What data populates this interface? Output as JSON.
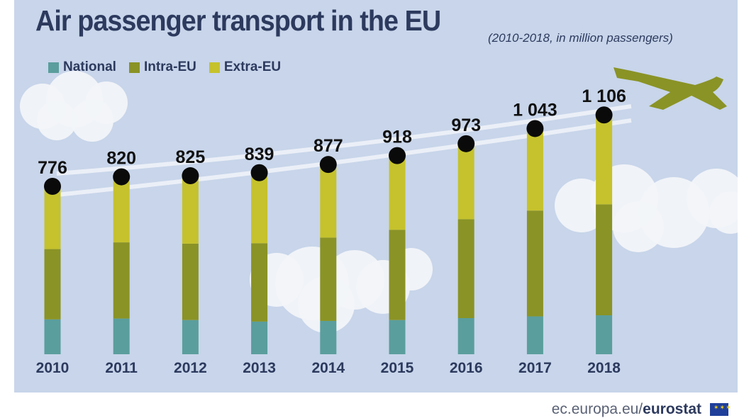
{
  "chart_data": {
    "type": "bar",
    "stacked": true,
    "title": "Air passenger transport in the EU",
    "subtitle": "(2010-2018, in million passengers)",
    "categories": [
      "2010",
      "2011",
      "2012",
      "2013",
      "2014",
      "2015",
      "2016",
      "2017",
      "2018"
    ],
    "series": [
      {
        "name": "National",
        "color": "#5a9e9d",
        "values": [
          161,
          165,
          158,
          151,
          154,
          158,
          167,
          175,
          180
        ]
      },
      {
        "name": "Intra-EU",
        "color": "#8a9325",
        "values": [
          325,
          352,
          353,
          362,
          385,
          417,
          457,
          489,
          513
        ]
      },
      {
        "name": "Extra-EU",
        "color": "#c5c22d",
        "values": [
          290,
          303,
          314,
          326,
          338,
          343,
          349,
          379,
          413
        ]
      }
    ],
    "totals": [
      776,
      820,
      825,
      839,
      877,
      918,
      973,
      1043,
      1106
    ],
    "total_labels": [
      "776",
      "820",
      "825",
      "839",
      "877",
      "918",
      "973",
      "1 043",
      "1 106"
    ],
    "grid": false,
    "legend_position": "top-left"
  },
  "footer": {
    "site": "ec.europa.eu/",
    "brand": "eurostat"
  },
  "icons": {
    "plane": "airplane-icon",
    "flag": "eu-flag-icon"
  }
}
